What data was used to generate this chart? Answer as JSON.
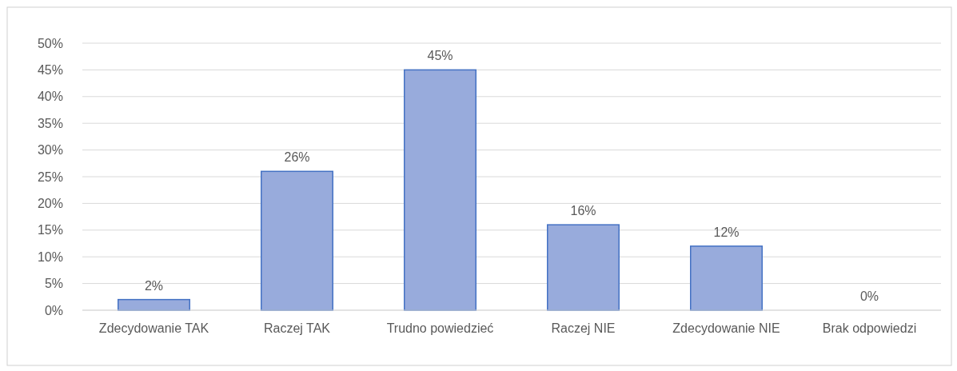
{
  "chart_data": {
    "type": "bar",
    "categories": [
      "Zdecydowanie TAK",
      "Raczej TAK",
      "Trudno powiedzieć",
      "Raczej NIE",
      "Zdecydowanie NIE",
      "Brak odpowiedzi"
    ],
    "values": [
      2,
      26,
      45,
      16,
      12,
      0
    ],
    "color": "#98abdc",
    "value_labels": [
      "2%",
      "26%",
      "45%",
      "16%",
      "12%",
      "0%"
    ],
    "ylim": [
      0,
      50
    ],
    "yticks": [
      {
        "value": 0,
        "label": "0%"
      },
      {
        "value": 5,
        "label": "5%"
      },
      {
        "value": 10,
        "label": "10%"
      },
      {
        "value": 15,
        "label": "15%"
      },
      {
        "value": 20,
        "label": "20%"
      },
      {
        "value": 25,
        "label": "25%"
      },
      {
        "value": 30,
        "label": "30%"
      },
      {
        "value": 35,
        "label": "35%"
      },
      {
        "value": 40,
        "label": "40%"
      },
      {
        "value": 45,
        "label": "45%"
      },
      {
        "value": 50,
        "label": "50%"
      }
    ],
    "grid": "y"
  }
}
